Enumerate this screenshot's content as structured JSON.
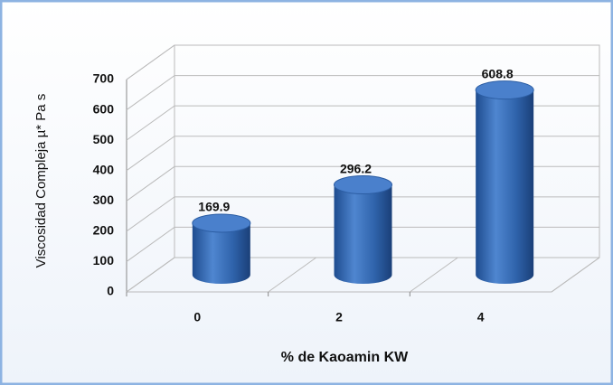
{
  "chart_data": {
    "type": "bar3d",
    "x_label": "% de Kaoamin KW",
    "y_label": "Viscosidad Compleja    µ* Pa s",
    "categories": [
      "0",
      "2",
      "4"
    ],
    "values": [
      169.9,
      296.2,
      608.8
    ],
    "color": "#3a6fb8",
    "ylim": [
      0,
      700
    ],
    "yticks": [
      0,
      100,
      200,
      300,
      400,
      500,
      600,
      700
    ],
    "grid": true
  }
}
